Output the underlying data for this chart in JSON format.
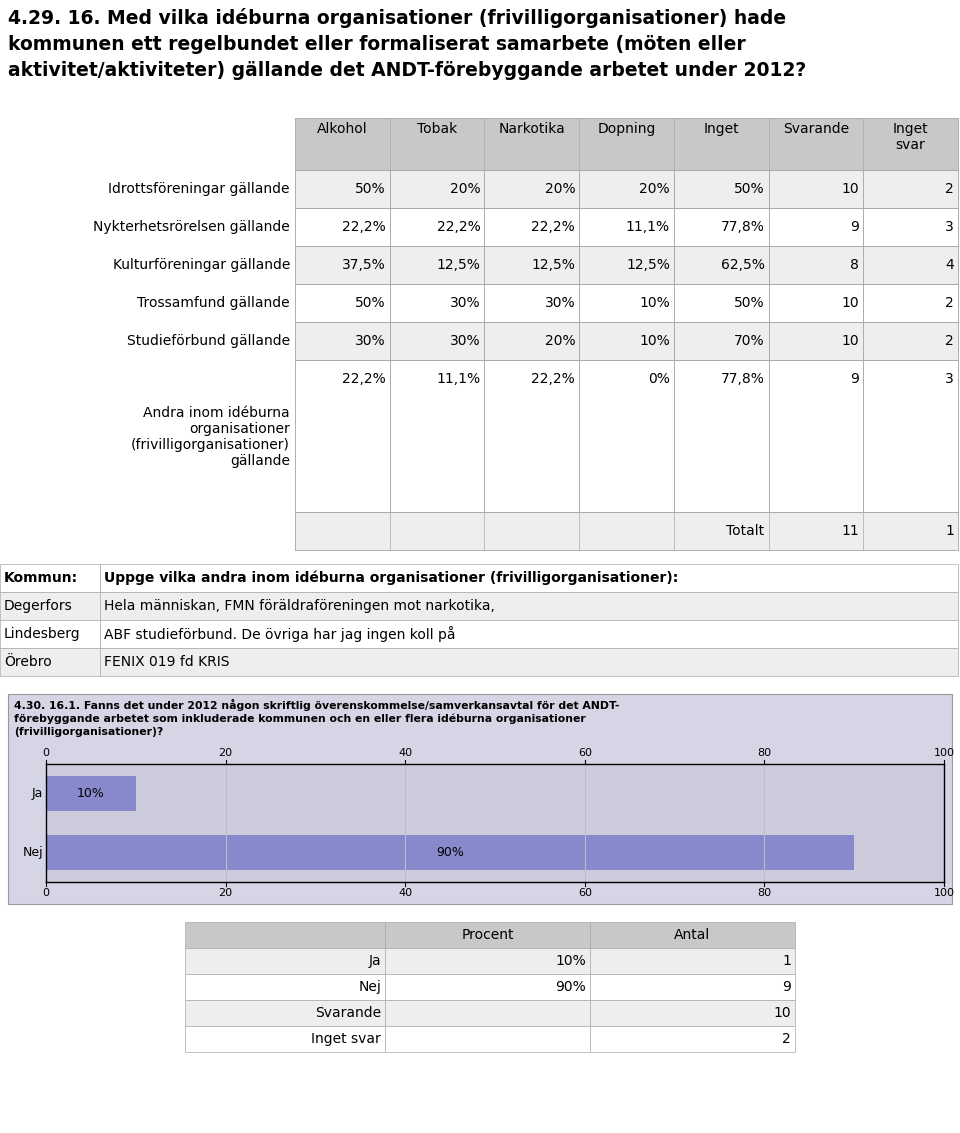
{
  "title": "4.29. 16. Med vilka idéburna organisationer (frivilligorganisationer) hade\nkommunen ett regelbundet eller formaliserat samarbete (möten eller\naktivitet/aktiviteter) gällande det ANDT-förebyggande arbetet under 2012?",
  "table1_cols": [
    "Alkohol",
    "Tobak",
    "Narkotika",
    "Dopning",
    "Inget",
    "Svarande",
    "Inget\nsvar"
  ],
  "table1_rows": [
    [
      "Idrottsföreningar gällande",
      "50%",
      "20%",
      "20%",
      "20%",
      "50%",
      "10",
      "2"
    ],
    [
      "Nykterhetsrörelsen gällande",
      "22,2%",
      "22,2%",
      "22,2%",
      "11,1%",
      "77,8%",
      "9",
      "3"
    ],
    [
      "Kulturföreningar gällande",
      "37,5%",
      "12,5%",
      "12,5%",
      "12,5%",
      "62,5%",
      "8",
      "4"
    ],
    [
      "Trossamfund gällande",
      "50%",
      "30%",
      "30%",
      "10%",
      "50%",
      "10",
      "2"
    ],
    [
      "Studieförbund gällande",
      "30%",
      "30%",
      "20%",
      "10%",
      "70%",
      "10",
      "2"
    ],
    [
      "Andra inom idéburna\norganisationer\n(frivilligorganisationer)\ngällande",
      "22,2%",
      "11,1%",
      "22,2%",
      "0%",
      "77,8%",
      "9",
      "3"
    ]
  ],
  "totalt_label": "Totalt",
  "totalt_svarande": "11",
  "totalt_inget_svar": "1",
  "kommune_table_headers": [
    "Kommun:",
    "Uppge vilka andra inom idéburna organisationer (frivilligorganisationer):"
  ],
  "kommune_table_rows": [
    [
      "Degerfors",
      "Hela människan, FMN föräldraföreningen mot narkotika,"
    ],
    [
      "Lindesberg",
      "ABF studieförbund. De övriga har jag ingen koll på"
    ],
    [
      "Örebro",
      "FENIX 019 fd KRIS"
    ]
  ],
  "chart_title": "4.30. 16.1. Fanns det under 2012 någon skriftlig överenskommelse/samverkansavtal för det ANDT-\nförebyggande arbetet som inkluderade kommunen och en eller flera idéburna organisationer\n(frivilligorganisationer)?",
  "bar_categories": [
    "Ja",
    "Nej"
  ],
  "bar_values": [
    10,
    90
  ],
  "bar_labels": [
    "10%",
    "90%"
  ],
  "bar_color": "#8888cc",
  "bar_bg_color": "#ccccdd",
  "chart_bg": "#d5d5e5",
  "table2_rows": [
    [
      "Ja",
      "10%",
      "1"
    ],
    [
      "Nej",
      "90%",
      "9"
    ],
    [
      "Svarande",
      "",
      "10"
    ],
    [
      "Inget svar",
      "",
      "2"
    ]
  ],
  "table2_cols": [
    "",
    "Procent",
    "Antal"
  ],
  "header_bg": "#c8c8c8",
  "row_bg_even": "#eeeeee",
  "row_bg_odd": "#ffffff",
  "grid_color": "#aaaaaa"
}
